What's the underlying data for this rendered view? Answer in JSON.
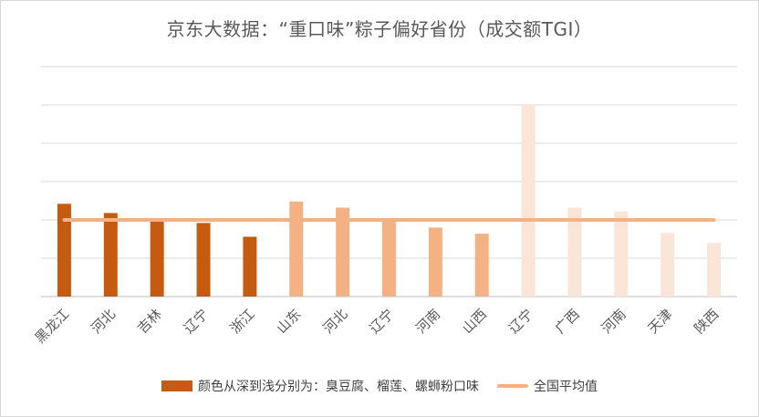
{
  "chart_data": {
    "type": "bar",
    "title": "京东大数据：“重口味”粽子偏好省份（成交额TGI）",
    "categories": [
      "黑龙江",
      "河北",
      "吉林",
      "辽宁",
      "浙江",
      "山东",
      "河北",
      "辽宁",
      "河南",
      "山西",
      "辽宁",
      "广西",
      "河南",
      "天津",
      "陕西"
    ],
    "series": [
      {
        "name": "颜色从深到浅分别为：臭豆腐、榴莲、螺蛳粉口味",
        "type": "bar",
        "values": [
          121,
          109,
          101,
          96,
          78,
          124,
          116,
          100,
          90,
          82,
          250,
          116,
          111,
          83,
          70
        ]
      },
      {
        "name": "全国平均值",
        "type": "line",
        "values": [
          100,
          100,
          100,
          100,
          100,
          100,
          100,
          100,
          100,
          100,
          100,
          100,
          100,
          100,
          100
        ]
      }
    ],
    "bar_color_groups": [
      {
        "indices": [
          0,
          1,
          2,
          3,
          4
        ],
        "color": "#c55a11"
      },
      {
        "indices": [
          5,
          6,
          7,
          8,
          9
        ],
        "color": "#f4b183"
      },
      {
        "indices": [
          10,
          11,
          12,
          13,
          14
        ],
        "color": "#fbe5d6"
      }
    ],
    "average_line_color": "#f4b183",
    "ylim": [
      0,
      300
    ],
    "yticks": [
      0,
      50,
      100,
      150,
      200,
      250,
      300
    ],
    "grid": true,
    "legend_position": "bottom"
  }
}
